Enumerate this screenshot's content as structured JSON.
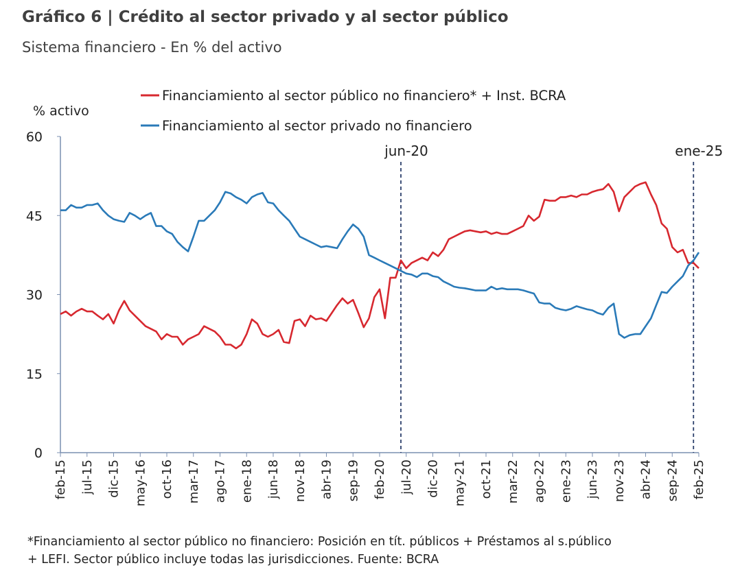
{
  "chart_data": {
    "type": "line",
    "title": "Gráfico 6 | Crédito al sector privado y al sector público",
    "subtitle": "Sistema financiero - En % del activo",
    "ylabel": "% activo",
    "footnote": [
      "*Financiamiento al sector público no financiero: Posición en tít. públicos + Préstamos al s.público",
      "+ LEFI. Sector público incluye todas las jurisdicciones. Fuente: BCRA"
    ],
    "categories": [
      "feb-15",
      null,
      null,
      null,
      null,
      "jul-15",
      null,
      null,
      null,
      null,
      "dic-15",
      null,
      null,
      null,
      null,
      "may-16",
      null,
      null,
      null,
      null,
      "oct-16",
      null,
      null,
      null,
      null,
      "mar-17",
      null,
      null,
      null,
      null,
      "ago-17",
      null,
      null,
      null,
      null,
      "ene-18",
      null,
      null,
      null,
      null,
      "jun-18",
      null,
      null,
      null,
      null,
      "nov-18",
      null,
      null,
      null,
      null,
      "abr-19",
      null,
      null,
      null,
      null,
      "sep-19",
      null,
      null,
      null,
      null,
      "feb-20",
      null,
      null,
      null,
      null,
      "jul-20",
      null,
      null,
      null,
      null,
      "dic-20",
      null,
      null,
      null,
      null,
      "may-21",
      null,
      null,
      null,
      null,
      "oct-21",
      null,
      null,
      null,
      null,
      "mar-22",
      null,
      null,
      null,
      null,
      "ago-22",
      null,
      null,
      null,
      null,
      "ene-23",
      null,
      null,
      null,
      null,
      "jun-23",
      null,
      null,
      null,
      null,
      "nov-23",
      null,
      null,
      null,
      null,
      "abr-24",
      null,
      null,
      null,
      null,
      "sep-24",
      null,
      null,
      null,
      null,
      "feb-25"
    ],
    "series": [
      {
        "name": "Financiamiento al sector público no financiero* + Inst. BCRA",
        "color": "#d7282f",
        "values": [
          26.3,
          26.8,
          26,
          26.8,
          27.3,
          26.8,
          26.8,
          26,
          25.3,
          26.3,
          24.5,
          27,
          28.8,
          27,
          26,
          25,
          24,
          23.5,
          23,
          21.5,
          22.5,
          22,
          22,
          20.5,
          21.5,
          22,
          22.5,
          24,
          23.5,
          23,
          22,
          20.5,
          20.5,
          19.8,
          20.5,
          22.5,
          25.3,
          24.5,
          22.5,
          22,
          22.5,
          23.3,
          21,
          20.8,
          25,
          25.3,
          24,
          26,
          25.3,
          25.5,
          25,
          26.5,
          28,
          29.3,
          28.3,
          29,
          26.5,
          23.8,
          25.5,
          29.5,
          31,
          25.5,
          33.2,
          33.2,
          36.5,
          35,
          36,
          36.5,
          37,
          36.5,
          38,
          37.3,
          38.5,
          40.5,
          41,
          41.5,
          42,
          42.2,
          42,
          41.8,
          42,
          41.5,
          41.8,
          41.5,
          41.5,
          42,
          42.5,
          43,
          45,
          44,
          44.8,
          48,
          47.8,
          47.8,
          48.5,
          48.5,
          48.8,
          48.5,
          49,
          49,
          49.5,
          49.8,
          50,
          51,
          49.5,
          45.8,
          48.5,
          49.5,
          50.5,
          51,
          51.3,
          49,
          47,
          43.5,
          42.5,
          39,
          38,
          38.5,
          36,
          36,
          35
        ]
      },
      {
        "name": "Financiamiento al sector privado no financiero",
        "color": "#2a7ab8",
        "values": [
          46,
          46,
          47,
          46.5,
          46.5,
          47,
          47,
          47.3,
          46,
          45,
          44.3,
          44,
          43.8,
          45.5,
          45,
          44.3,
          45,
          45.5,
          43,
          43,
          42,
          41.5,
          40,
          39,
          38.2,
          41,
          44,
          44,
          45,
          46,
          47.5,
          49.5,
          49.2,
          48.5,
          48,
          47.3,
          48.5,
          49,
          49.3,
          47.5,
          47.3,
          46,
          45,
          44,
          42.5,
          41,
          40.5,
          40,
          39.5,
          39,
          39.2,
          39,
          38.8,
          40.5,
          42,
          43.3,
          42.5,
          41,
          37.5,
          37,
          36.5,
          36,
          35.5,
          35,
          34.5,
          34,
          33.8,
          33.3,
          34,
          34,
          33.5,
          33.3,
          32.5,
          32,
          31.5,
          31.3,
          31.2,
          31,
          30.8,
          30.8,
          30.8,
          31.5,
          31,
          31.2,
          31,
          31,
          31,
          30.8,
          30.5,
          30.2,
          28.5,
          28.3,
          28.3,
          27.5,
          27.2,
          27,
          27.3,
          27.8,
          27.5,
          27.2,
          27,
          26.5,
          26.2,
          27.5,
          28.3,
          22.5,
          21.8,
          22.3,
          22.5,
          22.5,
          24,
          25.5,
          28,
          30.5,
          30.3,
          31.5,
          32.5,
          33.5,
          35.5,
          36.5,
          38
        ]
      }
    ],
    "vlines": [
      {
        "label": "jun-20",
        "index": 64
      },
      {
        "label": "ene-25",
        "index": 119
      }
    ],
    "ylim": [
      0,
      60
    ],
    "yticks": [
      0,
      15,
      30,
      45,
      60
    ],
    "grid": false,
    "legend": "top"
  }
}
